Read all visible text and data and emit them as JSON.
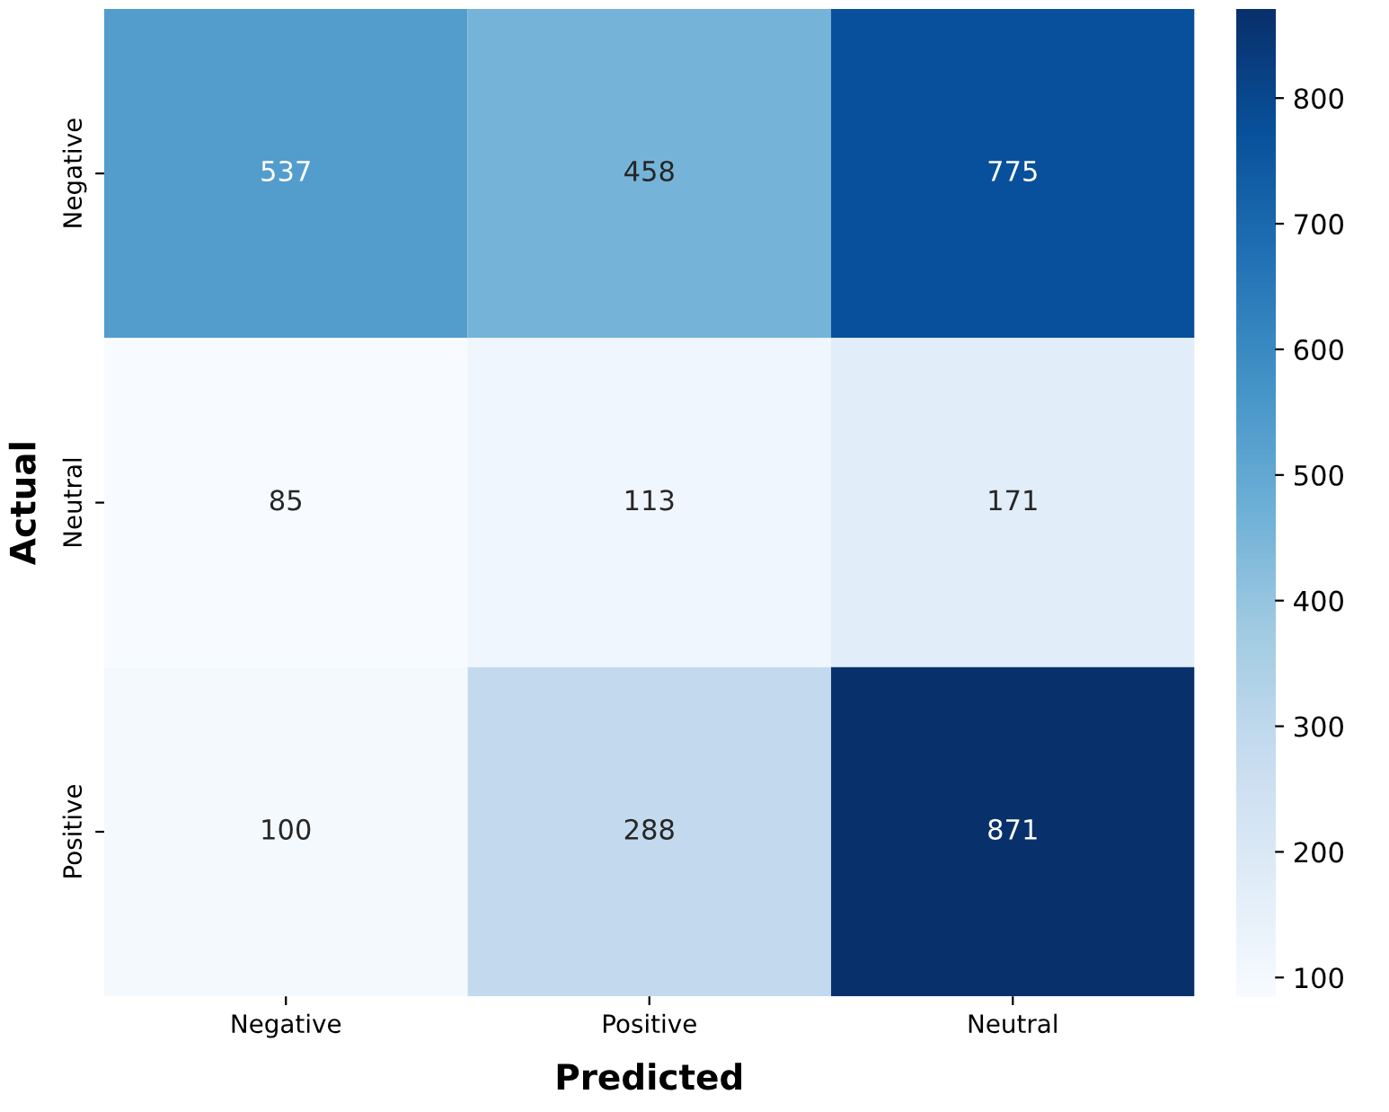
{
  "chart_data": {
    "type": "heatmap",
    "xlabel": "Predicted",
    "ylabel": "Actual",
    "categories": [
      "Negative",
      "Positive",
      "Neutral"
    ],
    "y_categories": [
      "Negative",
      "Neutral",
      "Positive"
    ],
    "cells": [
      [
        537,
        458,
        775
      ],
      [
        85,
        113,
        171
      ],
      [
        100,
        288,
        871
      ]
    ],
    "data_labels": true,
    "clim": [
      85,
      871
    ],
    "cticks": [
      100,
      200,
      300,
      400,
      500,
      600,
      700,
      800
    ]
  }
}
